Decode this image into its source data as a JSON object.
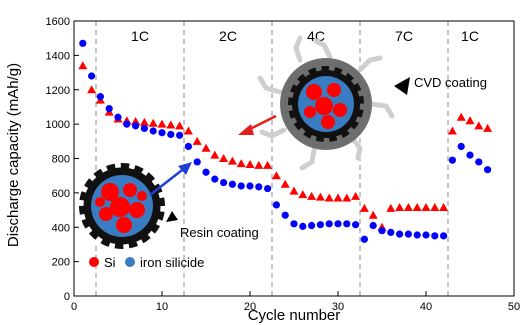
{
  "chart_data": {
    "type": "scatter",
    "xlabel": "Cycle number",
    "ylabel": "Discharge capacity (mAh/g)",
    "xlim": [
      0,
      50
    ],
    "ylim": [
      0,
      1600
    ],
    "xticks": [
      0,
      10,
      20,
      30,
      40,
      50
    ],
    "yticks": [
      0,
      200,
      400,
      600,
      800,
      1000,
      1200,
      1400,
      1600
    ],
    "grid": false,
    "rate_dividers": [
      2.5,
      12.5,
      22.5,
      32.5,
      42.5
    ],
    "rate_labels": [
      {
        "text": "1C",
        "x": 7.5
      },
      {
        "text": "2C",
        "x": 17.5
      },
      {
        "text": "4C",
        "x": 27.5
      },
      {
        "text": "7C",
        "x": 37.5
      },
      {
        "text": "1C",
        "x": 45
      }
    ],
    "series": [
      {
        "name": "",
        "marker": "triangle",
        "color": "#ff0000",
        "x": [
          1,
          2,
          3,
          4,
          5,
          6,
          7,
          8,
          9,
          10,
          11,
          12,
          13,
          14,
          15,
          16,
          17,
          18,
          19,
          20,
          21,
          22,
          23,
          24,
          25,
          26,
          27,
          28,
          29,
          30,
          31,
          32,
          33,
          34,
          35,
          36,
          37,
          38,
          39,
          40,
          41,
          42,
          43,
          44,
          45,
          46,
          47
        ],
        "y": [
          1340,
          1200,
          1140,
          1070,
          1030,
          1020,
          1015,
          1010,
          1005,
          1000,
          995,
          990,
          960,
          900,
          860,
          820,
          800,
          785,
          770,
          765,
          760,
          760,
          700,
          650,
          610,
          590,
          580,
          575,
          570,
          570,
          570,
          580,
          510,
          470,
          400,
          510,
          515,
          515,
          515,
          515,
          515,
          515,
          960,
          1040,
          1020,
          990,
          975
        ]
      },
      {
        "name": "",
        "marker": "circle",
        "color": "#0000ff",
        "x": [
          1,
          2,
          3,
          4,
          5,
          6,
          7,
          8,
          9,
          10,
          11,
          12,
          13,
          14,
          15,
          16,
          17,
          18,
          19,
          20,
          21,
          22,
          23,
          24,
          25,
          26,
          27,
          28,
          29,
          30,
          31,
          32,
          33,
          34,
          35,
          36,
          37,
          38,
          39,
          40,
          41,
          42,
          43,
          44,
          45,
          46,
          47
        ],
        "y": [
          1470,
          1280,
          1160,
          1090,
          1040,
          1000,
          990,
          975,
          960,
          950,
          940,
          935,
          870,
          780,
          720,
          680,
          660,
          650,
          640,
          640,
          635,
          625,
          530,
          470,
          420,
          405,
          410,
          415,
          420,
          420,
          420,
          415,
          330,
          410,
          380,
          370,
          360,
          360,
          355,
          355,
          350,
          350,
          790,
          870,
          820,
          780,
          735
        ]
      }
    ],
    "annotations": {
      "cvd": "CVD coating",
      "resin": "Resin coating"
    },
    "legend": [
      {
        "label": "Si",
        "color": "#ff0000"
      },
      {
        "label": "iron silicide",
        "color": "#3a7cc2"
      }
    ]
  }
}
